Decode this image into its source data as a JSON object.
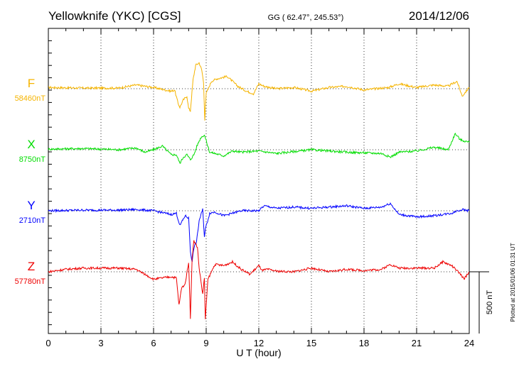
{
  "header": {
    "station": "Yellowknife (YKC)  [CGS]",
    "coords": "GG ( 62.47°, 245.53°)",
    "date": "2014/12/06"
  },
  "footer": {
    "plotted": "Plotted at 2015/01/06 01:31  UT",
    "scale_label": "500 nT"
  },
  "chart_data": {
    "type": "line",
    "xlabel": "U T (hour)",
    "xlim": [
      0,
      24
    ],
    "xticks": [
      "0",
      "3",
      "6",
      "9",
      "12",
      "15",
      "18",
      "21",
      "24"
    ],
    "scale_bar_nT": 500,
    "grid": true,
    "series": [
      {
        "name": "F",
        "baseline_label": "58460nT",
        "color": "#f5b400",
        "x": [
          0,
          2,
          4,
          5,
          6,
          7,
          7.2,
          7.4,
          7.5,
          7.7,
          7.9,
          8.0,
          8.1,
          8.25,
          8.4,
          8.6,
          8.75,
          8.85,
          8.92,
          9.0,
          9.3,
          9.6,
          10.2,
          10.8,
          11.3,
          11.7,
          12.0,
          12.3,
          13,
          14,
          15,
          16,
          17,
          18,
          19,
          19.4,
          20,
          21,
          22,
          22.8,
          23.3,
          23.6,
          24
        ],
        "y": [
          10,
          5,
          5,
          30,
          10,
          -20,
          -10,
          -120,
          -150,
          -90,
          -60,
          -160,
          -180,
          70,
          190,
          210,
          150,
          50,
          -250,
          -40,
          60,
          80,
          100,
          20,
          -20,
          -40,
          40,
          20,
          0,
          10,
          -20,
          10,
          20,
          -10,
          5,
          10,
          40,
          10,
          30,
          20,
          60,
          -60,
          10
        ]
      },
      {
        "name": "X",
        "baseline_label": "8750nT",
        "color": "#00dd00",
        "x": [
          0,
          2,
          4,
          5,
          5.5,
          6,
          6.5,
          7,
          7.3,
          7.5,
          7.7,
          7.9,
          8.1,
          8.3,
          8.5,
          8.7,
          8.9,
          9.2,
          9.5,
          10,
          10.5,
          11,
          12,
          13,
          15,
          17,
          19,
          19.5,
          20,
          21,
          22,
          22.8,
          23.2,
          23.5,
          24
        ],
        "y": [
          5,
          10,
          0,
          15,
          -20,
          0,
          30,
          -40,
          -40,
          -110,
          -60,
          -40,
          -80,
          -40,
          40,
          100,
          120,
          -20,
          -30,
          -50,
          -10,
          -20,
          -10,
          -30,
          0,
          -20,
          -30,
          -60,
          -20,
          -10,
          20,
          0,
          130,
          80,
          60
        ]
      },
      {
        "name": "Y",
        "baseline_label": "2710nT",
        "color": "#0000ff",
        "x": [
          0,
          2,
          4,
          5,
          6,
          7,
          7.3,
          7.5,
          7.8,
          8.0,
          8.1,
          8.2,
          8.3,
          8.45,
          8.6,
          8.8,
          8.9,
          8.95,
          9.2,
          9.5,
          10,
          11,
          12,
          12.3,
          13,
          14,
          15,
          16,
          17,
          18,
          19,
          19.5,
          20,
          21,
          22,
          23,
          23.3,
          23.6,
          24
        ],
        "y": [
          0,
          5,
          5,
          10,
          0,
          -30,
          -20,
          -120,
          -40,
          -60,
          -330,
          -410,
          -300,
          -250,
          -80,
          10,
          -210,
          -150,
          -20,
          -10,
          -40,
          0,
          0,
          40,
          20,
          30,
          20,
          30,
          40,
          20,
          30,
          60,
          -30,
          -50,
          -40,
          -20,
          0,
          10,
          0
        ]
      },
      {
        "name": "Z",
        "baseline_label": "57780nT",
        "color": "#ee0000",
        "x": [
          0,
          1,
          2,
          3,
          4,
          5,
          5.5,
          6,
          7,
          7.3,
          7.45,
          7.6,
          7.8,
          8.0,
          8.1,
          8.2,
          8.3,
          8.5,
          8.6,
          8.8,
          8.9,
          8.95,
          9.1,
          9.5,
          10,
          10.5,
          11,
          11.5,
          12,
          12.2,
          12.5,
          13,
          14,
          15,
          16,
          17,
          18,
          19,
          19.5,
          20,
          21,
          22,
          22.5,
          23,
          23.5,
          23.7,
          24
        ],
        "y": [
          0,
          20,
          30,
          30,
          30,
          20,
          -20,
          -60,
          -40,
          -50,
          -270,
          -130,
          -100,
          80,
          -380,
          120,
          250,
          200,
          30,
          -180,
          -50,
          -390,
          -60,
          60,
          50,
          80,
          20,
          -20,
          50,
          10,
          20,
          5,
          0,
          30,
          0,
          20,
          10,
          20,
          60,
          30,
          30,
          30,
          80,
          50,
          -20,
          -60,
          0
        ]
      }
    ]
  }
}
